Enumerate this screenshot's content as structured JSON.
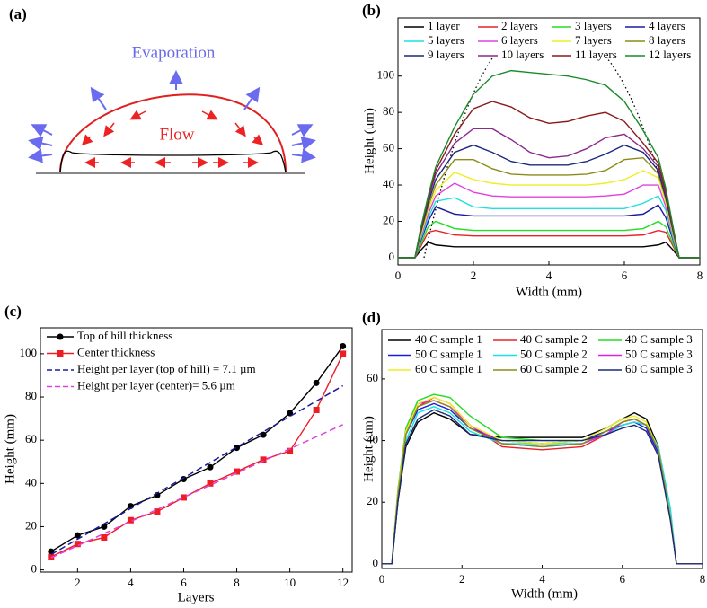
{
  "diagram": {
    "label": "(a)",
    "evaporation": "Evaporation",
    "flow": "Flow"
  },
  "chart_data": [
    {
      "type": "line",
      "label": "(b)",
      "x_label": "Width (mm)",
      "y_label": "Height (um)",
      "xlim": [
        0,
        8
      ],
      "ylim": [
        -4,
        132
      ],
      "xticks": [
        0,
        2,
        4,
        6,
        8
      ],
      "yticks": [
        0,
        20,
        40,
        60,
        80,
        100
      ],
      "legend": "top",
      "x": [
        0,
        0.45,
        0.6,
        0.8,
        1.0,
        1.5,
        2.0,
        2.5,
        3.0,
        3.5,
        4.0,
        4.5,
        5.0,
        5.5,
        6.0,
        6.5,
        6.9,
        7.1,
        7.3,
        7.45,
        8
      ],
      "series": [
        {
          "name": "1 layer",
          "color": "#000000",
          "values": [
            0,
            0,
            4,
            8.5,
            7,
            6,
            6,
            6,
            6,
            6,
            6,
            6,
            6,
            6,
            6,
            6,
            7,
            8.5,
            4,
            0,
            0
          ]
        },
        {
          "name": "2 layers",
          "color": "#e8202a",
          "values": [
            0,
            0,
            6,
            14,
            15,
            12.5,
            12,
            12,
            12,
            12,
            12,
            12,
            12,
            12,
            12,
            12.5,
            15,
            14,
            6,
            0,
            0
          ]
        },
        {
          "name": "3 layers",
          "color": "#22dd22",
          "values": [
            0,
            0,
            7,
            17,
            20,
            16,
            15,
            15,
            15,
            15,
            15,
            15,
            15,
            15,
            15,
            16,
            20,
            17,
            7,
            0,
            0
          ]
        },
        {
          "name": "4 layers",
          "color": "#1a1aa0",
          "values": [
            0,
            0,
            9,
            20,
            28,
            24,
            23,
            23,
            23,
            23,
            23,
            23,
            23,
            23,
            23,
            24,
            29,
            22,
            9,
            0,
            0
          ]
        },
        {
          "name": "5 layers",
          "color": "#1ee0e0",
          "values": [
            0,
            0,
            10,
            22,
            31,
            33,
            28,
            27,
            27,
            27,
            27,
            27,
            27,
            27,
            27,
            30,
            34,
            26,
            10,
            0,
            0
          ]
        },
        {
          "name": "6 layers",
          "color": "#e040e0",
          "values": [
            0,
            0,
            11,
            24,
            34,
            41,
            36,
            34,
            33.5,
            33.5,
            33.5,
            33.5,
            33.5,
            34,
            35,
            40,
            40,
            28,
            11,
            0,
            0
          ]
        },
        {
          "name": "7 layers",
          "color": "#eeee22",
          "values": [
            0,
            0,
            12,
            26,
            37,
            47,
            43,
            41,
            40,
            40,
            40,
            40,
            40,
            41,
            43,
            48,
            44,
            30,
            12,
            0,
            0
          ]
        },
        {
          "name": "8 layers",
          "color": "#8b8b1a",
          "values": [
            0,
            0,
            13,
            28,
            40,
            54,
            54,
            49,
            46,
            45.5,
            45.5,
            45.5,
            46,
            48,
            54,
            55,
            46,
            32,
            13,
            0,
            0
          ]
        },
        {
          "name": "9 layers",
          "color": "#1a2a7a",
          "values": [
            0,
            0,
            14,
            30,
            43,
            58,
            62,
            58,
            53,
            51,
            51,
            51,
            53,
            57,
            62,
            58,
            48,
            33,
            14,
            0,
            0
          ]
        },
        {
          "name": "10 layers",
          "color": "#8b2a8b",
          "values": [
            0,
            0,
            15,
            32,
            46,
            63,
            71,
            71,
            65,
            58,
            55,
            56,
            60,
            66,
            68,
            60,
            50,
            35,
            15,
            0,
            0
          ]
        },
        {
          "name": "11 layers",
          "color": "#8b1a1a",
          "values": [
            0,
            0,
            15,
            33,
            48,
            68,
            82,
            86,
            83,
            77,
            74,
            75,
            78,
            80,
            75,
            63,
            52,
            36,
            15,
            0,
            0
          ]
        },
        {
          "name": "12 layers",
          "color": "#1a8a2a",
          "values": [
            0,
            0,
            16,
            34,
            50,
            72,
            90,
            100,
            103,
            102,
            101,
            100,
            98,
            95,
            86,
            70,
            55,
            38,
            16,
            0,
            0
          ]
        }
      ]
    },
    {
      "type": "line",
      "label": "(c)",
      "x_label": "Layers",
      "y_label": "Height (mm)",
      "xlim": [
        0.6,
        12.35
      ],
      "ylim": [
        -1,
        112
      ],
      "xticks": [
        2,
        4,
        6,
        8,
        10,
        12
      ],
      "yticks": [
        0,
        20,
        40,
        60,
        80,
        100
      ],
      "legend": "upper left",
      "x": [
        1,
        2,
        3,
        4,
        5,
        6,
        7,
        8,
        9,
        10,
        11,
        12
      ],
      "series": [
        {
          "name": "Top of hill thickness",
          "color": "#000000",
          "marker": "circle",
          "values": [
            8.5,
            16,
            20,
            29.5,
            34.5,
            42,
            47.5,
            56.5,
            62.5,
            72.5,
            86.5,
            103.5
          ]
        },
        {
          "name": "Center thickness",
          "color": "#ee1c24",
          "marker": "square",
          "values": [
            6,
            12,
            15,
            23,
            27,
            33.5,
            40,
            45.5,
            51,
            55,
            74,
            100
          ]
        },
        {
          "name": "Height per layer (top of hill) = 7.1 µm",
          "color": "#1a1aa0",
          "dash": true,
          "values": [
            7.1,
            14.2,
            21.3,
            28.4,
            35.5,
            42.6,
            49.7,
            56.8,
            63.9,
            71,
            78.1,
            85.2
          ]
        },
        {
          "name": "Height per layer (center)= 5.6 µm",
          "color": "#e040e0",
          "dash": true,
          "values": [
            5.6,
            11.2,
            16.8,
            22.4,
            28,
            33.6,
            39.2,
            44.8,
            50.4,
            56,
            61.6,
            67.2
          ]
        }
      ]
    },
    {
      "type": "line",
      "label": "(d)",
      "x_label": "Width (mm)",
      "y_label": "Height (um)",
      "xlim": [
        0,
        8
      ],
      "ylim": [
        -1.5,
        76
      ],
      "xticks": [
        0,
        2,
        4,
        6,
        8
      ],
      "yticks": [
        0,
        20,
        40,
        60
      ],
      "legend": "top",
      "x": [
        0,
        0.25,
        0.4,
        0.6,
        0.9,
        1.3,
        1.7,
        2.2,
        3.0,
        4.0,
        5.0,
        5.6,
        6.0,
        6.3,
        6.6,
        6.9,
        7.2,
        7.35,
        8
      ],
      "series": [
        {
          "name": "40 C sample 1",
          "color": "#000000",
          "values": [
            0,
            0,
            20,
            38,
            46,
            49,
            47,
            42,
            41,
            41,
            41,
            44,
            47,
            49,
            47,
            38,
            15,
            0,
            0
          ]
        },
        {
          "name": "40 C sample 2",
          "color": "#e8202a",
          "values": [
            0,
            0,
            22,
            42,
            51,
            54,
            52,
            45,
            38,
            37,
            38,
            42,
            46,
            47,
            45,
            37,
            15,
            0,
            0
          ]
        },
        {
          "name": "40 C sample 3",
          "color": "#22dd22",
          "values": [
            0,
            0,
            24,
            44,
            53,
            55,
            54,
            48,
            41,
            40,
            40,
            43,
            46,
            47,
            45,
            37,
            15,
            0,
            0
          ]
        },
        {
          "name": "50 C sample 1",
          "color": "#1a1ae0",
          "values": [
            0,
            0,
            22,
            42,
            50,
            52,
            50,
            44,
            40,
            39,
            40,
            43,
            45,
            46,
            44,
            36,
            15,
            0,
            0
          ]
        },
        {
          "name": "50 C sample 2",
          "color": "#1ee0e0",
          "values": [
            0,
            0,
            21,
            40,
            49,
            51,
            49,
            43,
            39,
            39,
            39,
            42,
            45,
            46,
            45,
            38,
            18,
            0,
            0
          ]
        },
        {
          "name": "50 C sample 3",
          "color": "#e020e0",
          "values": [
            0,
            0,
            23,
            43,
            52,
            53,
            51,
            45,
            39,
            38,
            39,
            42,
            46,
            47,
            45,
            37,
            15,
            0,
            0
          ]
        },
        {
          "name": "60 C sample 1",
          "color": "#eeee22",
          "values": [
            0,
            0,
            23,
            43,
            52,
            54,
            52,
            45,
            40,
            39,
            40,
            44,
            47,
            48,
            46,
            37,
            15,
            0,
            0
          ]
        },
        {
          "name": "60 C sample 2",
          "color": "#8b8b1a",
          "values": [
            0,
            0,
            22,
            42,
            51,
            53,
            51,
            44,
            39,
            38,
            39,
            43,
            46,
            47,
            45,
            37,
            15,
            0,
            0
          ]
        },
        {
          "name": "60 C sample 3",
          "color": "#1a2a7a",
          "values": [
            0,
            0,
            20,
            39,
            47,
            50,
            48,
            42,
            40,
            40,
            40,
            42,
            44,
            45,
            43,
            35,
            14,
            0,
            0
          ]
        }
      ]
    }
  ]
}
